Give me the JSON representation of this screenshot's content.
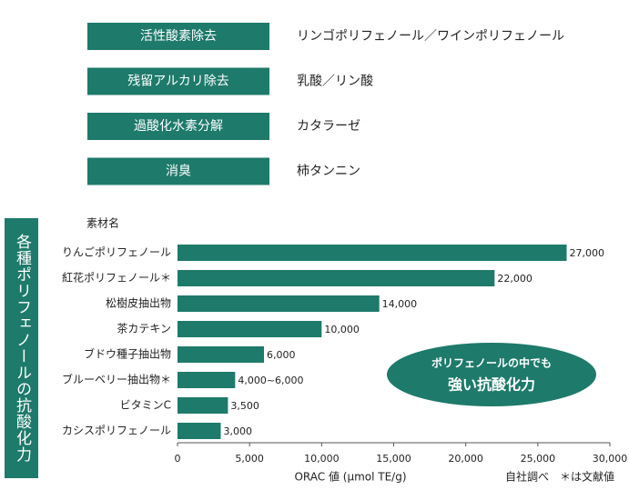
{
  "features": [
    {
      "label": "活性酸素除去",
      "description": "リンゴポリフェノール／ワインポリフェノール"
    },
    {
      "label": "残留アルカリ除去",
      "description": "乳酸／リン酸"
    },
    {
      "label": "過酸化水素分解",
      "description": "カタラーゼ"
    },
    {
      "label": "消臭",
      "description": "柿タンニン"
    }
  ],
  "chart_data": {
    "type": "bar",
    "orientation": "horizontal",
    "title": "各種ポリフェノールの抗酸化力",
    "category_axis_label": "素材名",
    "x_label": "ORAC 値 (μmol TE/g)",
    "note": "自社調べ　＊は文献値",
    "annotation": [
      "ポリフェノールの中でも",
      "強い抗酸化力"
    ],
    "categories": [
      "りんごポリフェノール",
      "紅花ポリフェノール＊",
      "松樹皮抽出物",
      "茶カテキン",
      "ブドウ種子抽出物",
      "ブルーベリー抽出物＊",
      "ビタミンC",
      "カシスポリフェノール"
    ],
    "values": [
      27000,
      22000,
      14000,
      10000,
      6000,
      4000,
      3500,
      3000
    ],
    "value_labels": [
      "27,000",
      "22,000",
      "14,000",
      "10,000",
      "6,000",
      "4,000~6,000",
      "3,500",
      "3,000"
    ],
    "color": "#1e7a6b",
    "xlim": [
      0,
      30000
    ],
    "xticks": [
      0,
      {
        "value": 5000,
        "label": "5,000"
      },
      {
        "value": 10000,
        "label": "10,000"
      },
      {
        "value": 15000,
        "label": "15,000"
      },
      {
        "value": 20000,
        "label": "20,000"
      },
      {
        "value": 25000,
        "label": "25,000"
      },
      {
        "value": 30000,
        "label": "30,000"
      }
    ]
  }
}
